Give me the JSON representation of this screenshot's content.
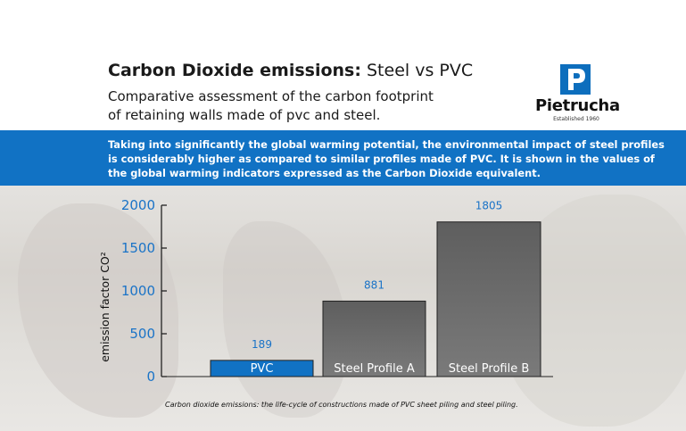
{
  "header": {
    "title_bold": "Carbon Dioxide emissions:",
    "title_rest": "Steel vs PVC",
    "subtitle_line1": "Comparative assessment of the carbon footprint",
    "subtitle_line2": "of retaining walls made of pvc and steel."
  },
  "logo": {
    "name": "Pietrucha",
    "established": "Established 1960",
    "letter": "P",
    "color": "#0d6ebd"
  },
  "banner": {
    "text": "Taking into significantly the global warming potential, the environmental impact of steel profiles is considerably higher as compared to similar profiles made of PVC. It is shown in the values of the global warming indicators expressed as the Carbon Dioxide equivalent."
  },
  "caption": "Carbon dioxide emissions: the life-cycle of constructions made of PVC sheet piling and steel piling.",
  "colors": {
    "brand_blue": "#1172c4",
    "pvc_bar": "#1172c4",
    "steel_bar": "#6f6f6f",
    "tick_blue": "#1a73c7"
  },
  "chart_data": {
    "type": "bar",
    "categories": [
      "PVC",
      "Steel Profile A",
      "Steel Profile B"
    ],
    "values": [
      189,
      881,
      1805
    ],
    "data_labels": [
      "189",
      "881",
      "1805"
    ],
    "bar_colors": [
      "#1172c4",
      "#6f6f6f",
      "#6f6f6f"
    ],
    "ylabel": "emission factor CO²",
    "ylim": [
      0,
      2000
    ],
    "yticks": [
      0,
      500,
      1000,
      1500,
      2000
    ],
    "ytick_labels": [
      "0",
      "500",
      "1000",
      "1500",
      "2000"
    ],
    "grid": false,
    "legend": false
  }
}
